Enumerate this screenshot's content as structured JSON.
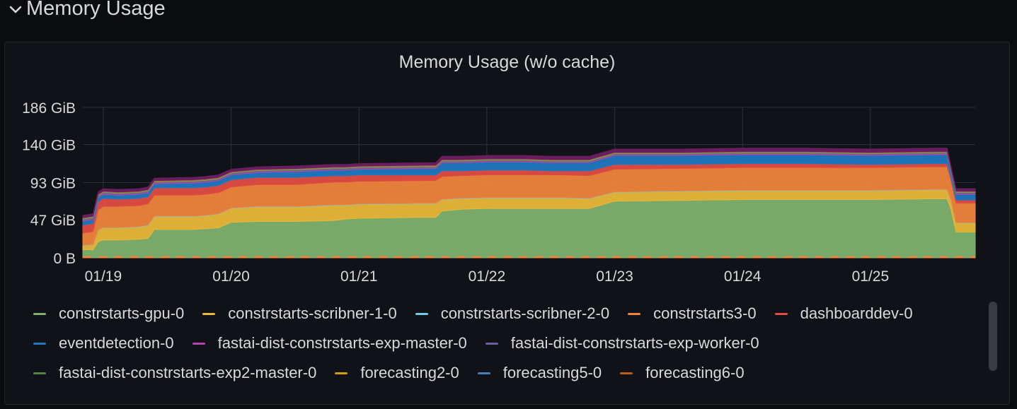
{
  "row": {
    "title": "Memory Usage",
    "chevron_icon": "chevron-down-icon"
  },
  "panel": {
    "title": "Memory Usage (w/o cache)"
  },
  "colors": {
    "background": "#0b0c0e",
    "panel_bg": "#111217",
    "grid": "#2e3036",
    "text": "#d8d9da"
  },
  "chart_data": {
    "type": "area",
    "stacked": true,
    "y_ticks": [
      "0 B",
      "47 GiB",
      "93 GiB",
      "140 GiB",
      "186 GiB"
    ],
    "y_tick_values": [
      0,
      47,
      93,
      140,
      186
    ],
    "ylim": [
      0,
      186
    ],
    "y_unit": "GiB",
    "x_ticks": [
      "01/19",
      "01/20",
      "01/21",
      "01/22",
      "01/23",
      "01/24",
      "01/25"
    ],
    "x_tick_days": [
      0,
      1,
      2,
      3,
      4,
      5,
      6
    ],
    "xlim": [
      -0.16,
      6.82
    ],
    "grid": true,
    "legend_position": "bottom",
    "x": [
      -0.16,
      -0.08,
      -0.04,
      0.0,
      0.12,
      0.28,
      0.35,
      0.4,
      0.7,
      0.8,
      0.9,
      1.0,
      1.2,
      1.5,
      1.8,
      1.9,
      2.0,
      2.5,
      2.6,
      2.65,
      2.8,
      3.0,
      3.2,
      3.3,
      3.5,
      3.6,
      3.8,
      4.0,
      4.5,
      5.0,
      5.5,
      6.0,
      6.5,
      6.6,
      6.63,
      6.67,
      6.82
    ],
    "series": [
      {
        "name": "constrstarts-gpu-0",
        "color": "#7eb26d",
        "values": [
          10,
          10,
          20,
          22,
          22,
          23,
          24,
          35,
          35,
          36,
          37,
          44,
          45,
          45,
          46,
          48,
          49,
          50,
          50,
          58,
          60,
          61,
          61,
          61,
          61,
          61,
          61,
          70,
          71,
          72,
          72,
          72,
          73,
          73,
          60,
          32,
          32
        ]
      },
      {
        "name": "constrstarts-scribner-1-0",
        "color": "#eab839",
        "values": [
          5,
          6,
          14,
          15,
          15,
          15,
          16,
          16,
          16,
          16,
          17,
          17,
          18,
          18,
          19,
          17,
          17,
          17,
          17,
          14,
          13,
          13,
          13,
          13,
          13,
          13,
          12,
          11,
          11,
          11,
          11,
          11,
          11,
          11,
          11,
          11,
          11
        ]
      },
      {
        "name": "constrstarts-scribner-2-0",
        "color": "#6ed0e0",
        "values": [
          0.5,
          0.5,
          0.5,
          0.5,
          0.5,
          0.5,
          0.5,
          0.5,
          0.5,
          0.5,
          0.5,
          0.5,
          0.5,
          0.5,
          0.5,
          0.5,
          0.5,
          0.5,
          0.5,
          0.5,
          0.5,
          0.5,
          0.5,
          0.5,
          0.5,
          0.5,
          0.5,
          0.5,
          0.5,
          0.5,
          0.5,
          0.5,
          0.5,
          0.5,
          0.5,
          0.5,
          0.5
        ]
      },
      {
        "name": "constrstarts3-0",
        "color": "#ef843c",
        "values": [
          15,
          16,
          25,
          26,
          26,
          26,
          26,
          26,
          26,
          26,
          26,
          26,
          27,
          27,
          28,
          28,
          28,
          28,
          28,
          28,
          28,
          28,
          28,
          28,
          28,
          28,
          28,
          28,
          28,
          28,
          28,
          28,
          28,
          28,
          24,
          24,
          24
        ]
      },
      {
        "name": "dashboarddev-0",
        "color": "#e24d42",
        "values": [
          10,
          10,
          10,
          10,
          9,
          9,
          9,
          9,
          9,
          9,
          9,
          9,
          9,
          9,
          8,
          8,
          8,
          7,
          7,
          7,
          6,
          6,
          6,
          6,
          5,
          5,
          6,
          6,
          5,
          5,
          5,
          4,
          4,
          4,
          4,
          4,
          4
        ]
      },
      {
        "name": "eventdetection-0",
        "color": "#1f78c1",
        "values": [
          5,
          5,
          5,
          5,
          5,
          5,
          5,
          5,
          6,
          6,
          6,
          6,
          6,
          7,
          7,
          7,
          7,
          8,
          8,
          10,
          10,
          10,
          10,
          10,
          10,
          10,
          10,
          11,
          11,
          11,
          11,
          11,
          11,
          11,
          7,
          7,
          7
        ]
      },
      {
        "name": "fastai-dist-constrstarts-exp-master-0",
        "color": "#ba43a9",
        "values": [
          1,
          1,
          1,
          1,
          1,
          1,
          1,
          1,
          1,
          1,
          1,
          1,
          1,
          1,
          1,
          1,
          1,
          1,
          1,
          1,
          1,
          1,
          1,
          1,
          1,
          1,
          1,
          1,
          1,
          1,
          1,
          1,
          1,
          1,
          1,
          1,
          1
        ]
      },
      {
        "name": "fastai-dist-constrstarts-exp-worker-0",
        "color": "#705da0",
        "values": [
          1,
          1,
          1,
          1,
          1,
          1,
          1,
          1,
          1,
          1,
          1,
          1,
          1,
          1,
          1,
          1,
          1,
          1,
          1,
          1,
          1,
          1,
          1,
          1,
          1,
          1,
          1,
          1,
          1,
          1,
          1,
          1,
          1,
          1,
          1,
          1,
          1
        ]
      },
      {
        "name": "fastai-dist-constrstarts-exp2-master-0",
        "color": "#508642",
        "values": [
          0.5,
          0.5,
          0.5,
          0.5,
          0.5,
          0.5,
          0.5,
          0.5,
          0.5,
          0.5,
          0.5,
          0.5,
          0.5,
          0.5,
          0.5,
          0.5,
          0.5,
          0.5,
          0.5,
          0.5,
          0.5,
          0.5,
          0.5,
          0.5,
          0.5,
          0.5,
          0.5,
          0.5,
          0.5,
          0.5,
          0.5,
          0.5,
          0.5,
          0.5,
          0.5,
          0.5,
          0.5
        ]
      },
      {
        "name": "forecasting2-0",
        "color": "#cca300",
        "values": [
          0.5,
          0.5,
          0.5,
          0.5,
          0.5,
          0.5,
          0.5,
          0.5,
          0.5,
          0.5,
          0.5,
          0.5,
          0.5,
          0.5,
          0.5,
          0.5,
          0.5,
          0.5,
          0.5,
          0.5,
          0.5,
          0.5,
          0.5,
          0.5,
          0.5,
          0.5,
          0.5,
          0.5,
          0.5,
          0.5,
          0.5,
          0.5,
          0.5,
          0.5,
          0.5,
          0.5,
          0.5
        ]
      },
      {
        "name": "forecasting5-0",
        "color": "#447ebc",
        "values": [
          0.5,
          0.5,
          0.5,
          0.5,
          0.5,
          0.5,
          0.5,
          0.5,
          0.5,
          0.5,
          0.5,
          0.5,
          0.5,
          0.5,
          0.5,
          0.5,
          0.5,
          0.5,
          0.5,
          0.5,
          0.5,
          0.5,
          0.5,
          0.5,
          0.5,
          0.5,
          0.5,
          0.5,
          0.5,
          0.5,
          0.5,
          0.5,
          0.5,
          0.5,
          0.5,
          0.5,
          0.5
        ]
      },
      {
        "name": "forecasting6-0",
        "color": "#c15c17",
        "values": [
          0.5,
          0.5,
          0.5,
          0.5,
          0.5,
          0.5,
          0.5,
          0.5,
          0.5,
          0.5,
          0.5,
          0.5,
          0.5,
          0.5,
          0.5,
          0.5,
          0.5,
          0.5,
          0.5,
          0.5,
          0.5,
          0.5,
          0.5,
          0.5,
          0.5,
          0.5,
          0.5,
          0.5,
          0.5,
          0.5,
          0.5,
          0.5,
          0.5,
          0.5,
          0.5,
          0.5,
          0.5
        ]
      },
      {
        "name": "",
        "color": "#6d1f62",
        "values": [
          3,
          3,
          3,
          3,
          3,
          3,
          3,
          3,
          3,
          3,
          3,
          3,
          3,
          3,
          3,
          3,
          3,
          3,
          3,
          4,
          4,
          4,
          4,
          4,
          4,
          4,
          4,
          4,
          4,
          4,
          4,
          4,
          4,
          4,
          3,
          3,
          3
        ]
      }
    ]
  }
}
